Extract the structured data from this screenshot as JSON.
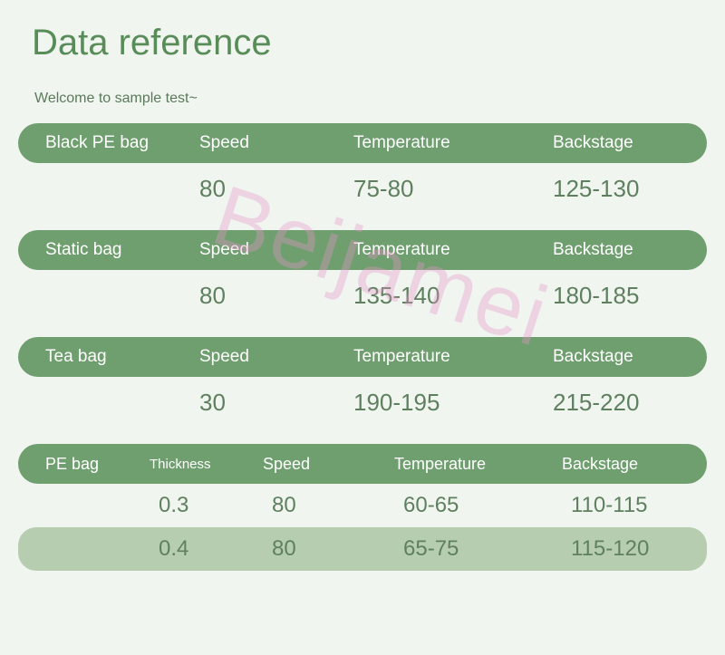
{
  "title": "Data reference",
  "subtitle": "Welcome to sample test~",
  "watermark": "Beijamei",
  "colors": {
    "background": "#f1f5f0",
    "title_color": "#588c58",
    "header_bg": "#6f9e6f",
    "header_text": "#ffffff",
    "value_text": "#5f805f",
    "alt_row_bg": "#b6cdb0",
    "watermark_color": "rgba(230,150,200,0.35)"
  },
  "tables": {
    "black_pe": {
      "name": "Black PE bag",
      "headers": {
        "a": "Speed",
        "b": "Temperature",
        "c": "Backstage"
      },
      "values": {
        "a": "80",
        "b": "75-80",
        "c": "125-130"
      }
    },
    "static": {
      "name": "Static bag",
      "headers": {
        "a": "Speed",
        "b": "Temperature",
        "c": "Backstage"
      },
      "values": {
        "a": "80",
        "b": "135-140",
        "c": "180-185"
      }
    },
    "tea": {
      "name": "Tea bag",
      "headers": {
        "a": "Speed",
        "b": "Temperature",
        "c": "Backstage"
      },
      "values": {
        "a": "30",
        "b": "190-195",
        "c": "215-220"
      }
    },
    "pe": {
      "name": "PE bag",
      "headers": {
        "thk": "Thickness",
        "a": "Speed",
        "b": "Temperature",
        "c": "Backstage"
      },
      "rows": [
        {
          "thk": "0.3",
          "a": "80",
          "b": "60-65",
          "c": "110-115"
        },
        {
          "thk": "0.4",
          "a": "80",
          "b": "65-75",
          "c": "115-120"
        }
      ]
    }
  }
}
